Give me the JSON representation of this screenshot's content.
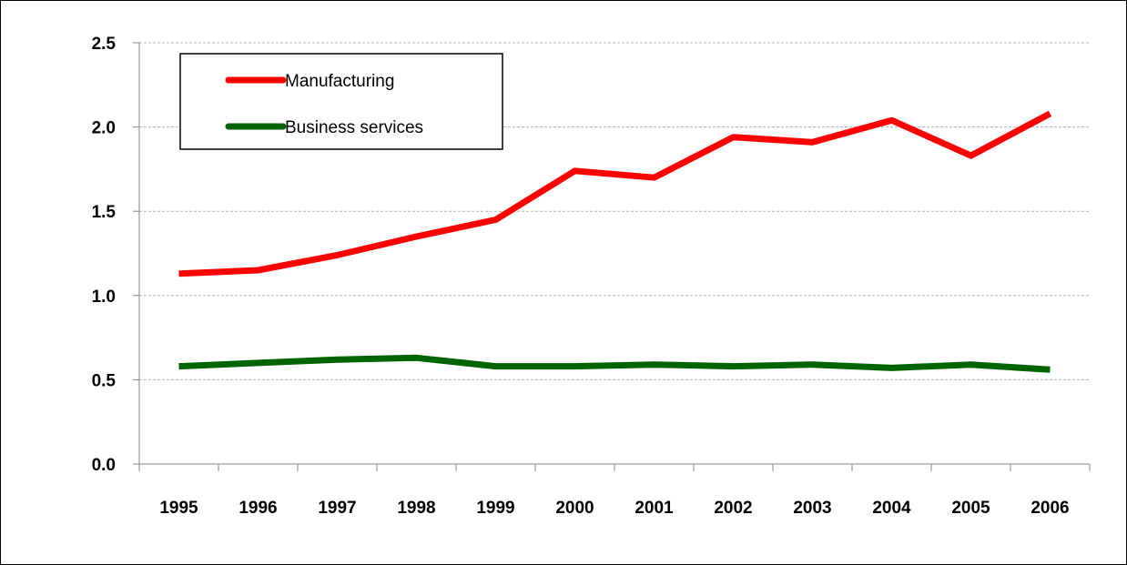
{
  "chart_data": {
    "type": "line",
    "title": "",
    "xlabel": "",
    "ylabel": "",
    "categories": [
      "1995",
      "1996",
      "1997",
      "1998",
      "1999",
      "2000",
      "2001",
      "2002",
      "2003",
      "2004",
      "2005",
      "2006"
    ],
    "ylim": [
      0,
      2.5
    ],
    "yticks": [
      "0.0",
      "0.5",
      "1.0",
      "1.5",
      "2.0",
      "2.5"
    ],
    "grid": "horizontal dashed",
    "legend_position": "top-left",
    "series": [
      {
        "name": "Manufacturing",
        "color": "#ff0000",
        "values": [
          1.13,
          1.15,
          1.24,
          1.35,
          1.45,
          1.74,
          1.7,
          1.94,
          1.91,
          2.04,
          1.83,
          2.08
        ]
      },
      {
        "name": "Business services",
        "color": "#006400",
        "values": [
          0.58,
          0.6,
          0.62,
          0.63,
          0.58,
          0.58,
          0.59,
          0.58,
          0.59,
          0.57,
          0.59,
          0.56
        ]
      }
    ]
  }
}
